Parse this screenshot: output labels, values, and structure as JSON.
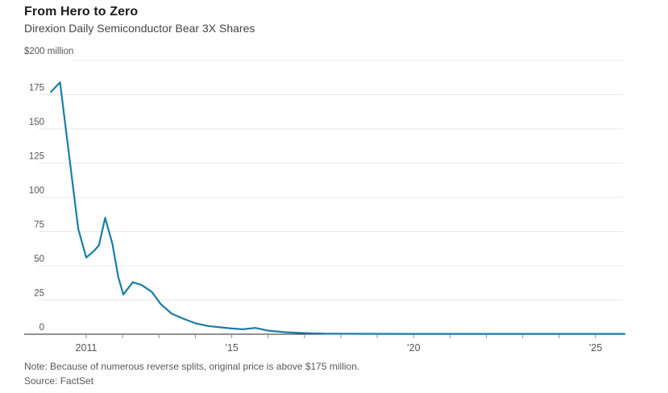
{
  "header": {
    "title": "From Hero to Zero",
    "subtitle": "Direxion Daily Semiconductor Bear 3X Shares"
  },
  "footer": {
    "note": "Note: Because of numerous reverse splits, original price is above $175 million.",
    "source": "Source: FactSet"
  },
  "colors": {
    "line": "#1a7da6",
    "grid": "#e9e9e9",
    "axis": "#222222",
    "tick": "#8c8c8c"
  },
  "chart_data": {
    "type": "line",
    "title": "From Hero to Zero",
    "subtitle": "Direxion Daily Semiconductor Bear 3X Shares",
    "xlabel": "",
    "ylabel": "$ million",
    "y_top_label": "$200 million",
    "ylim": [
      0,
      200
    ],
    "xlim": [
      2010,
      2025.85
    ],
    "grid": "horizontal",
    "legend": "none",
    "y_ticks": [
      0,
      25,
      50,
      75,
      100,
      125,
      150,
      175
    ],
    "y_gridlines": [
      25,
      50,
      75,
      100,
      125,
      150,
      175,
      200
    ],
    "x_ticks": [
      {
        "year": 2011,
        "label": "2011"
      },
      {
        "year": 2015,
        "label": "’15"
      },
      {
        "year": 2020,
        "label": "’20"
      },
      {
        "year": 2025,
        "label": "’25"
      }
    ],
    "minor_ticks": {
      "start": 2011,
      "end": 2025,
      "interval_years": 1
    },
    "series": [
      {
        "name": "Direxion Daily Semiconductor Bear 3X Shares market value ($ million)",
        "color": "#1a7da6",
        "points": [
          [
            2010.03,
            177
          ],
          [
            2010.28,
            184
          ],
          [
            2010.78,
            77
          ],
          [
            2011.0,
            56
          ],
          [
            2011.22,
            61
          ],
          [
            2011.35,
            65
          ],
          [
            2011.52,
            85
          ],
          [
            2011.72,
            66
          ],
          [
            2011.88,
            42
          ],
          [
            2012.02,
            29
          ],
          [
            2012.28,
            38
          ],
          [
            2012.52,
            36
          ],
          [
            2012.8,
            31
          ],
          [
            2013.05,
            22
          ],
          [
            2013.35,
            15
          ],
          [
            2013.65,
            11.5
          ],
          [
            2014.0,
            8
          ],
          [
            2014.35,
            6
          ],
          [
            2014.7,
            5
          ],
          [
            2015.0,
            4.2
          ],
          [
            2015.3,
            3.6
          ],
          [
            2015.65,
            4.6
          ],
          [
            2016.0,
            2.6
          ],
          [
            2016.5,
            1.4
          ],
          [
            2017.0,
            0.8
          ],
          [
            2017.6,
            0.4
          ],
          [
            2018.5,
            0.3
          ],
          [
            2020.0,
            0.25
          ],
          [
            2022.0,
            0.25
          ],
          [
            2024.0,
            0.25
          ],
          [
            2025.8,
            0.25
          ]
        ]
      }
    ]
  }
}
